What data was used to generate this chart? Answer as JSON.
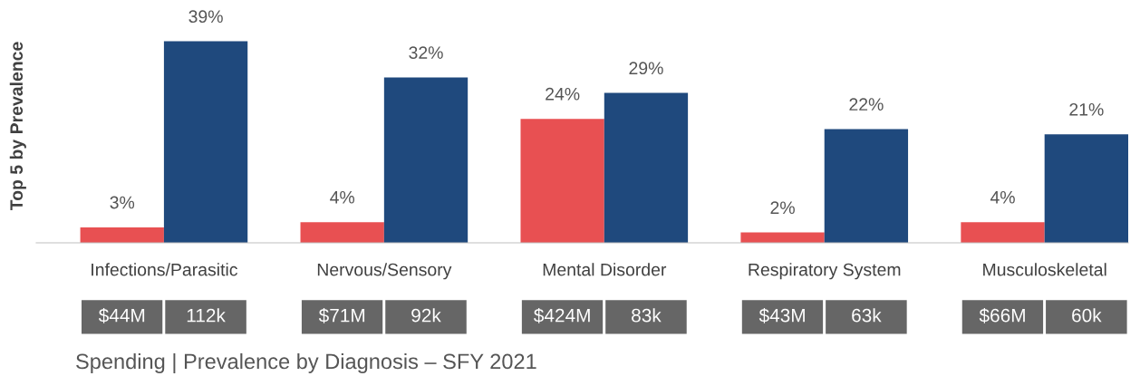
{
  "chart_data": {
    "type": "bar",
    "ylabel": "Top 5 by Prevalence",
    "categories": [
      "Infections/Parasitic",
      "Nervous/Sensory",
      "Mental Disorder",
      "Respiratory System",
      "Musculoskeletal"
    ],
    "series": [
      {
        "color": "#e85052",
        "values": [
          3,
          4,
          24,
          2,
          4
        ],
        "value_labels": [
          "3%",
          "4%",
          "24%",
          "2%",
          "4%"
        ]
      },
      {
        "color": "#1f497d",
        "values": [
          39,
          32,
          29,
          22,
          21
        ],
        "value_labels": [
          "39%",
          "32%",
          "29%",
          "22%",
          "21%"
        ]
      }
    ],
    "grid": false,
    "tick_labels": "x",
    "annotations": [
      "$44M",
      "112k",
      "$71M",
      "92k",
      "$424M",
      "83k",
      "$43M",
      "63k",
      "$66M",
      "60k",
      "Spending | Prevalence by Diagnosis – SFY 2021"
    ]
  }
}
